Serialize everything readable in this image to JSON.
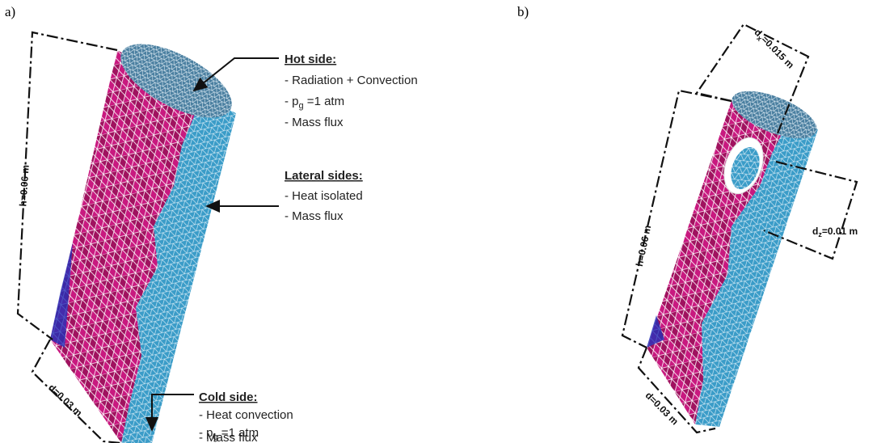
{
  "panels": {
    "a": {
      "label": "a)",
      "dimensions": {
        "height": "h=0.06 m",
        "diameter": "d=0.03 m"
      },
      "hot_side": {
        "title": "Hot side:",
        "items": [
          "- Radiation + Convection",
          {
            "pre": "- p",
            "sub": "g",
            "post": " =1 atm"
          },
          "- Mass flux"
        ]
      },
      "lateral_sides": {
        "title": "Lateral sides:",
        "items": [
          "- Heat isolated",
          "- Mass flux"
        ]
      },
      "cold_side": {
        "title": "Cold side:",
        "items": [
          "- Heat convection",
          {
            "pre": "- p",
            "sub": "g",
            "post": " =1 atm"
          },
          "- Mass flux"
        ]
      }
    },
    "b": {
      "label": "b)",
      "dimensions": {
        "hole_x": {
          "pre": "d",
          "sub": "x",
          "post": "=0.015 m"
        },
        "height": "h=0.06 m",
        "hole_z": {
          "pre": "d",
          "sub": "z",
          "post": "=0.01 m"
        },
        "diameter": "d=0.03 m"
      }
    }
  }
}
